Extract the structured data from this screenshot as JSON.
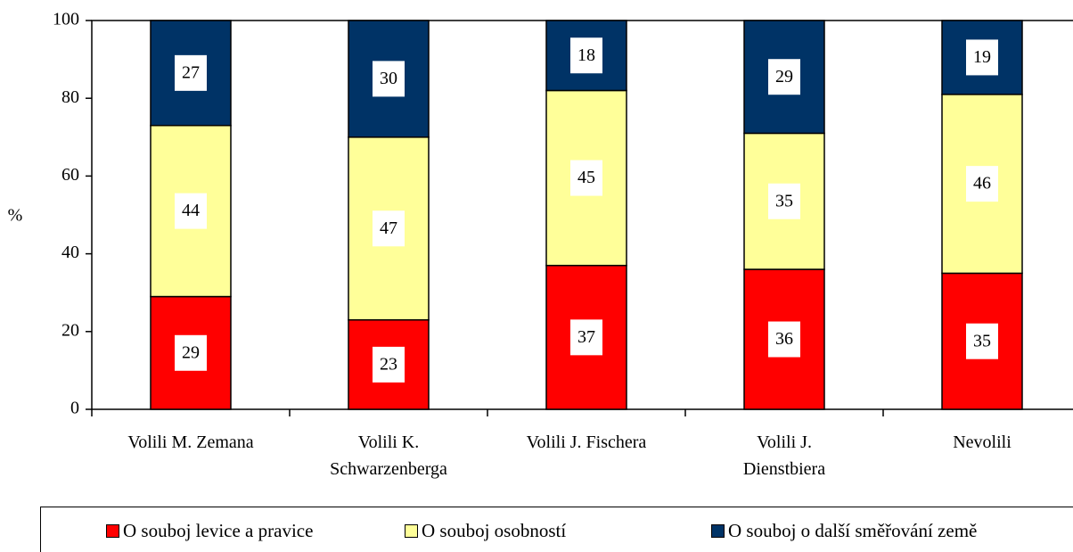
{
  "chart_data": {
    "type": "stacked_bar",
    "y_label": "%",
    "categories": [
      "Volili M. Zemana",
      "Volili K.\nSchwarzenberga",
      "Volili J. Fischera",
      "Volili J.\nDienstbiera",
      "Nevolili"
    ],
    "series": [
      {
        "name": "O souboj levice a pravice",
        "color": "#ff0000",
        "values": [
          29,
          23,
          37,
          36,
          35
        ]
      },
      {
        "name": "O souboj osobností",
        "color": "#ffff99",
        "values": [
          44,
          47,
          45,
          35,
          46
        ]
      },
      {
        "name": "O souboj o další směřování země",
        "color": "#003366",
        "values": [
          27,
          30,
          18,
          29,
          19
        ]
      }
    ],
    "ylim": [
      0,
      100
    ],
    "yticks": [
      0,
      20,
      40,
      60,
      80,
      100
    ],
    "legend": "bottom"
  }
}
